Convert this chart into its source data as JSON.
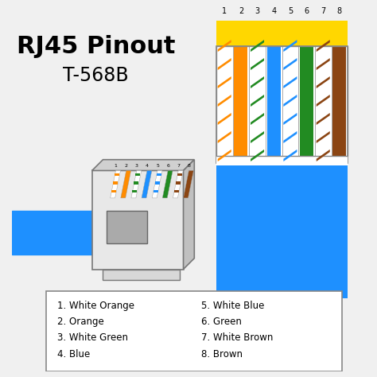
{
  "title_line1": "RJ45 Pinout",
  "title_line2": "T-568B",
  "background_color": "#f0f0f0",
  "wire_colors": [
    {
      "name": "White Orange",
      "color": "#FFFFFF",
      "stripe": "#FF8C00"
    },
    {
      "name": "Orange",
      "color": "#FF8C00",
      "stripe": null
    },
    {
      "name": "White Green",
      "color": "#FFFFFF",
      "stripe": "#228B22"
    },
    {
      "name": "Blue",
      "color": "#1E90FF",
      "stripe": null
    },
    {
      "name": "White Blue",
      "color": "#FFFFFF",
      "stripe": "#1E90FF"
    },
    {
      "name": "Green",
      "color": "#228B22",
      "stripe": null
    },
    {
      "name": "White Brown",
      "color": "#FFFFFF",
      "stripe": "#8B4513"
    },
    {
      "name": "Brown",
      "color": "#8B4513",
      "stripe": null
    }
  ],
  "legend_left": [
    "1. White Orange",
    "2. Orange",
    "3. White Green",
    "4. Blue"
  ],
  "legend_right": [
    "5. White Blue",
    "6. Green",
    "7. White Brown",
    "8. Brown"
  ],
  "cable_color": "#1E90FF",
  "connector_color": "#DCDCDC",
  "pin_numbers": [
    "1",
    "2",
    "3",
    "4",
    "5",
    "6",
    "7",
    "8"
  ],
  "legend_box_color": "#FFFFFF",
  "legend_border_color": "#888888"
}
